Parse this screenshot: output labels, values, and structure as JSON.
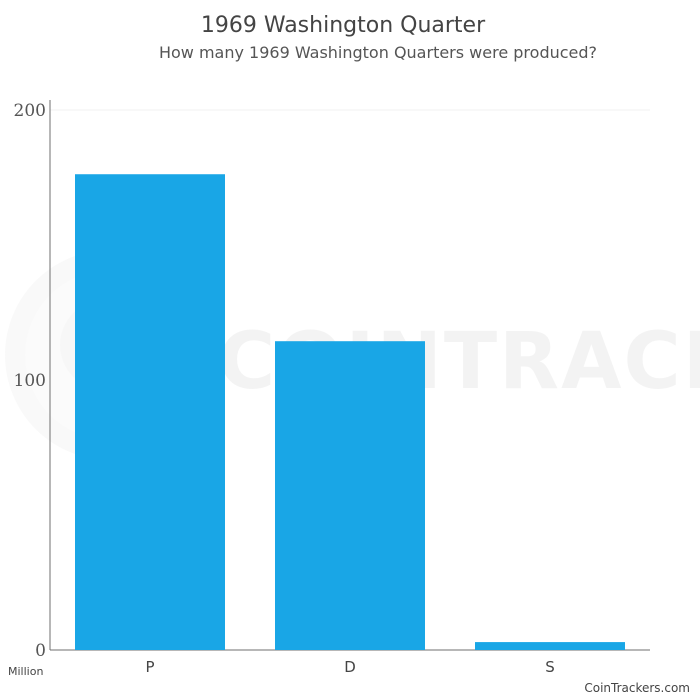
{
  "chart_data": {
    "type": "bar",
    "title": "1969 Washington Quarter",
    "subtitle": "How many 1969 Washington Quarters were produced?",
    "categories": [
      "P",
      "D",
      "S"
    ],
    "series": [
      {
        "values": [
          176.21,
          114.37,
          2.93
        ]
      }
    ],
    "ylim": [
      0,
      200
    ],
    "yticks": [
      "0",
      "100",
      "200"
    ],
    "ytick_values": [
      0,
      100,
      200
    ],
    "unit": "Million",
    "grid": false,
    "legend": "none",
    "bar_color": "#19a6e6",
    "axis_color": "#6f6f6f"
  },
  "watermark": {
    "text": "COINTRACKERS",
    "logo": "coin-logo-icon"
  },
  "credit": "CoinTrackers.com"
}
